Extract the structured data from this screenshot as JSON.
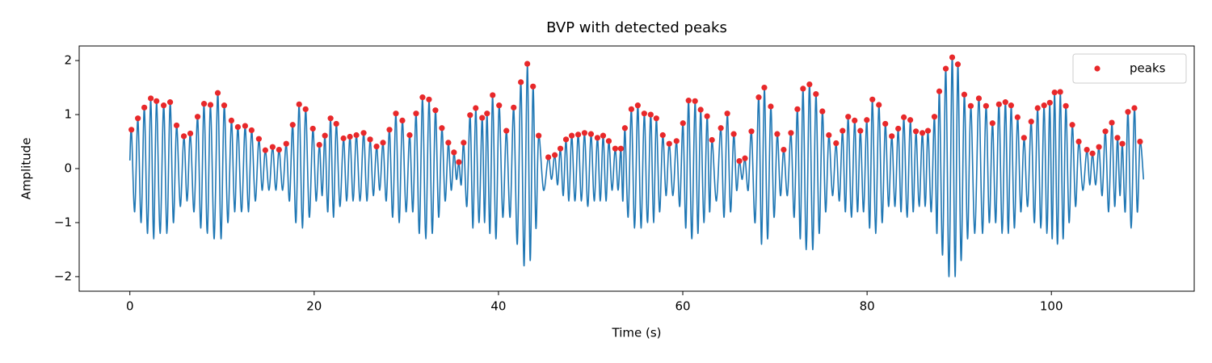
{
  "chart_data": {
    "type": "line",
    "title": "BVP with detected peaks",
    "x_label": "Time (s)",
    "y_label": "Amplitude",
    "xlim": [
      -5.5,
      115.5
    ],
    "ylim": [
      -2.27,
      2.27
    ],
    "xticks": [
      0,
      20,
      40,
      60,
      80,
      100
    ],
    "yticks": [
      {
        "value": -2,
        "label": "−2"
      },
      {
        "value": -1,
        "label": "−1"
      },
      0,
      1,
      2
    ],
    "legend": "upper right",
    "series": [
      {
        "type": "line",
        "color": "#1f77b4",
        "x": [
          0,
          0.17,
          0.52,
          0.87,
          1.22,
          1.57,
          1.92,
          2.27,
          2.58,
          2.89,
          3.28,
          3.67,
          4.02,
          4.37,
          4.72,
          5.07,
          5.47,
          5.86,
          6.21,
          6.56,
          6.96,
          7.35,
          7.7,
          8.05,
          8.4,
          8.75,
          9.15,
          9.54,
          9.89,
          10.24,
          10.63,
          11.02,
          11.37,
          11.72,
          12.12,
          12.51,
          12.86,
          13.21,
          13.61,
          14.0,
          14.35,
          14.7,
          15.1,
          15.49,
          15.84,
          16.19,
          16.58,
          16.97,
          17.32,
          17.67,
          18.02,
          18.37,
          18.72,
          19.07,
          19.47,
          19.86,
          20.21,
          20.56,
          20.87,
          21.17,
          21.48,
          21.78,
          22.09,
          22.4,
          22.79,
          23.18,
          23.53,
          23.88,
          24.23,
          24.58,
          24.98,
          25.37,
          25.72,
          26.07,
          26.42,
          26.77,
          27.12,
          27.47,
          27.82,
          28.17,
          28.52,
          28.87,
          29.22,
          29.57,
          29.97,
          30.36,
          30.71,
          31.06,
          31.41,
          31.76,
          32.11,
          32.46,
          32.81,
          33.16,
          33.51,
          33.86,
          34.21,
          34.56,
          34.87,
          35.17,
          35.44,
          35.7,
          35.96,
          36.22,
          36.57,
          36.92,
          37.23,
          37.53,
          37.88,
          38.23,
          38.5,
          38.76,
          39.07,
          39.37,
          39.72,
          40.07,
          40.47,
          40.86,
          41.26,
          41.65,
          42.04,
          42.43,
          42.78,
          43.13,
          43.44,
          43.75,
          44.06,
          44.36,
          44.89,
          45.41,
          45.76,
          46.11,
          46.42,
          46.72,
          47.03,
          47.33,
          47.64,
          47.95,
          48.3,
          48.65,
          49.0,
          49.34,
          49.69,
          50.04,
          50.39,
          50.74,
          51.05,
          51.36,
          51.67,
          51.97,
          52.32,
          52.67,
          52.98,
          53.28,
          53.5,
          53.72,
          54.07,
          54.42,
          54.77,
          55.12,
          55.47,
          55.82,
          56.17,
          56.52,
          56.83,
          57.13,
          57.48,
          57.83,
          58.18,
          58.53,
          58.93,
          59.32,
          59.67,
          60.02,
          60.33,
          60.63,
          60.98,
          61.33,
          61.64,
          61.94,
          62.29,
          62.64,
          62.91,
          63.17,
          63.65,
          64.13,
          64.48,
          64.83,
          65.18,
          65.53,
          65.84,
          66.14,
          66.45,
          66.75,
          67.1,
          67.45,
          67.85,
          68.24,
          68.55,
          68.85,
          69.2,
          69.55,
          69.9,
          70.25,
          70.6,
          70.95,
          71.35,
          71.74,
          72.09,
          72.44,
          72.75,
          73.05,
          73.4,
          73.75,
          74.1,
          74.45,
          74.8,
          75.15,
          75.5,
          75.85,
          76.25,
          76.64,
          76.99,
          77.34,
          77.65,
          77.95,
          78.3,
          78.65,
          78.96,
          79.27,
          79.62,
          79.97,
          80.28,
          80.58,
          80.93,
          81.28,
          81.63,
          81.98,
          82.33,
          82.68,
          83.03,
          83.38,
          83.69,
          83.99,
          84.34,
          84.69,
          85.0,
          85.3,
          85.65,
          86.0,
          86.31,
          86.61,
          86.96,
          87.31,
          87.58,
          87.84,
          88.19,
          88.54,
          88.89,
          89.24,
          89.55,
          89.85,
          90.2,
          90.55,
          90.9,
          91.25,
          91.69,
          92.13,
          92.52,
          92.91,
          93.26,
          93.61,
          93.96,
          94.31,
          94.66,
          95.01,
          95.32,
          95.63,
          95.98,
          96.33,
          96.68,
          97.03,
          97.42,
          97.81,
          98.16,
          98.51,
          98.86,
          99.21,
          99.52,
          99.83,
          100.09,
          100.35,
          100.66,
          100.96,
          101.27,
          101.57,
          101.92,
          102.27,
          102.62,
          102.97,
          103.41,
          103.85,
          104.16,
          104.46,
          104.81,
          105.16,
          105.51,
          105.86,
          106.21,
          106.56,
          106.87,
          107.17,
          107.44,
          107.7,
          108.01,
          108.31,
          108.66,
          109.01,
          109.32,
          109.62,
          110.0
        ],
        "values": [
          0.15,
          0.72,
          -0.8,
          0.93,
          -1.0,
          1.13,
          -1.2,
          1.3,
          -1.3,
          1.25,
          -1.2,
          1.17,
          -1.2,
          1.23,
          -1.0,
          0.8,
          -0.7,
          0.6,
          -0.6,
          0.65,
          -0.8,
          0.96,
          -1.1,
          1.2,
          -1.2,
          1.18,
          -1.3,
          1.4,
          -1.3,
          1.17,
          -1.0,
          0.89,
          -0.8,
          0.77,
          -0.8,
          0.79,
          -0.8,
          0.71,
          -0.6,
          0.55,
          -0.4,
          0.34,
          -0.4,
          0.4,
          -0.4,
          0.35,
          -0.4,
          0.46,
          -0.6,
          0.81,
          -1.0,
          1.19,
          -1.1,
          1.1,
          -0.9,
          0.74,
          -0.6,
          0.44,
          -0.5,
          0.61,
          -0.8,
          0.93,
          -0.9,
          0.83,
          -0.7,
          0.56,
          -0.6,
          0.59,
          -0.6,
          0.62,
          -0.6,
          0.66,
          -0.6,
          0.54,
          -0.5,
          0.41,
          -0.4,
          0.48,
          -0.6,
          0.72,
          -0.9,
          1.02,
          -1.0,
          0.89,
          -0.8,
          0.62,
          -0.8,
          1.02,
          -1.2,
          1.32,
          -1.3,
          1.28,
          -1.2,
          1.08,
          -0.9,
          0.75,
          -0.6,
          0.48,
          -0.4,
          0.3,
          -0.2,
          0.12,
          -0.3,
          0.48,
          -0.7,
          0.99,
          -1.1,
          1.12,
          -1.0,
          0.94,
          -1.0,
          1.02,
          -1.2,
          1.36,
          -1.3,
          1.17,
          -0.9,
          0.7,
          -0.9,
          1.13,
          -1.4,
          1.6,
          -1.8,
          1.94,
          -1.7,
          1.52,
          -1.1,
          0.61,
          -0.4,
          0.21,
          -0.2,
          0.25,
          -0.3,
          0.37,
          -0.5,
          0.54,
          -0.6,
          0.61,
          -0.6,
          0.63,
          -0.6,
          0.66,
          -0.7,
          0.64,
          -0.6,
          0.57,
          -0.6,
          0.61,
          -0.6,
          0.51,
          -0.4,
          0.37,
          -0.4,
          0.37,
          -0.6,
          0.75,
          -0.9,
          1.1,
          -1.1,
          1.17,
          -1.1,
          1.02,
          -1.0,
          1.0,
          -1.0,
          0.93,
          -0.8,
          0.62,
          -0.5,
          0.46,
          -0.5,
          0.51,
          -0.7,
          0.84,
          -1.1,
          1.26,
          -1.3,
          1.25,
          -1.2,
          1.09,
          -1.0,
          0.97,
          -0.8,
          0.53,
          -0.6,
          0.75,
          -0.9,
          1.02,
          -0.8,
          0.64,
          -0.4,
          0.14,
          -0.2,
          0.19,
          -0.4,
          0.69,
          -1.0,
          1.32,
          -1.4,
          1.5,
          -1.3,
          1.15,
          -0.9,
          0.64,
          -0.5,
          0.35,
          -0.5,
          0.66,
          -0.9,
          1.1,
          -1.3,
          1.48,
          -1.5,
          1.56,
          -1.5,
          1.38,
          -1.2,
          1.06,
          -0.8,
          0.62,
          -0.5,
          0.47,
          -0.6,
          0.7,
          -0.8,
          0.96,
          -0.9,
          0.89,
          -0.8,
          0.7,
          -0.8,
          0.9,
          -1.1,
          1.28,
          -1.2,
          1.18,
          -1.0,
          0.83,
          -0.7,
          0.6,
          -0.7,
          0.74,
          -0.8,
          0.95,
          -0.9,
          0.9,
          -0.8,
          0.69,
          -0.7,
          0.66,
          -0.7,
          0.7,
          -0.8,
          0.96,
          -1.2,
          1.43,
          -1.6,
          1.85,
          -2.0,
          2.06,
          -2.0,
          1.93,
          -1.7,
          1.37,
          -1.3,
          1.16,
          -1.2,
          1.3,
          -1.2,
          1.16,
          -1.0,
          0.84,
          -1.0,
          1.19,
          -1.2,
          1.23,
          -1.2,
          1.17,
          -1.1,
          0.95,
          -0.8,
          0.57,
          -0.7,
          0.87,
          -1.0,
          1.12,
          -1.1,
          1.17,
          -1.2,
          1.22,
          -1.3,
          1.41,
          -1.4,
          1.42,
          -1.3,
          1.16,
          -1.0,
          0.81,
          -0.7,
          0.5,
          -0.4,
          0.35,
          -0.3,
          0.28,
          -0.3,
          0.4,
          -0.5,
          0.69,
          -0.8,
          0.85,
          -0.7,
          0.57,
          -0.5,
          0.46,
          -0.8,
          1.05,
          -1.1,
          1.12,
          -0.8,
          0.5,
          -0.2
        ]
      },
      {
        "type": "scatter",
        "name": "peaks",
        "color": "#e8282a",
        "x": [
          0.17,
          0.87,
          1.57,
          2.27,
          2.89,
          3.67,
          4.37,
          5.07,
          5.86,
          6.56,
          7.35,
          8.05,
          8.75,
          9.54,
          10.24,
          11.02,
          11.72,
          12.51,
          13.21,
          14.0,
          14.7,
          15.49,
          16.19,
          16.97,
          17.67,
          18.37,
          19.07,
          19.86,
          20.56,
          21.17,
          21.78,
          22.4,
          23.18,
          23.88,
          24.58,
          25.37,
          26.07,
          26.77,
          27.47,
          28.17,
          28.87,
          29.57,
          30.36,
          31.06,
          31.76,
          32.46,
          33.16,
          33.86,
          34.56,
          35.17,
          35.7,
          36.22,
          36.92,
          37.53,
          38.23,
          38.76,
          39.37,
          40.07,
          40.86,
          41.65,
          42.43,
          43.13,
          43.75,
          44.36,
          45.41,
          46.11,
          46.72,
          47.33,
          47.95,
          48.65,
          49.34,
          50.04,
          50.74,
          51.36,
          51.97,
          52.67,
          53.28,
          53.72,
          54.42,
          55.12,
          55.82,
          56.52,
          57.13,
          57.83,
          58.53,
          59.32,
          60.02,
          60.63,
          61.33,
          61.94,
          62.64,
          63.17,
          64.13,
          64.83,
          65.53,
          66.14,
          66.75,
          67.45,
          68.24,
          68.85,
          69.55,
          70.25,
          70.95,
          71.74,
          72.44,
          73.05,
          73.75,
          74.45,
          75.15,
          75.85,
          76.64,
          77.34,
          77.95,
          78.65,
          79.27,
          79.97,
          80.58,
          81.28,
          81.98,
          82.68,
          83.38,
          83.99,
          84.69,
          85.3,
          86.0,
          86.61,
          87.31,
          87.84,
          88.54,
          89.24,
          89.85,
          90.55,
          91.25,
          92.13,
          92.91,
          93.61,
          94.31,
          95.01,
          95.63,
          96.33,
          97.03,
          97.81,
          98.51,
          99.21,
          99.83,
          100.35,
          100.96,
          101.57,
          102.27,
          102.97,
          103.85,
          104.46,
          105.16,
          105.86,
          106.56,
          107.17,
          107.7,
          108.31,
          109.01,
          109.62
        ],
        "values": [
          0.72,
          0.93,
          1.13,
          1.3,
          1.25,
          1.17,
          1.23,
          0.8,
          0.6,
          0.65,
          0.96,
          1.2,
          1.18,
          1.4,
          1.17,
          0.89,
          0.77,
          0.79,
          0.71,
          0.55,
          0.34,
          0.4,
          0.35,
          0.46,
          0.81,
          1.19,
          1.1,
          0.74,
          0.44,
          0.61,
          0.93,
          0.83,
          0.56,
          0.59,
          0.62,
          0.66,
          0.54,
          0.41,
          0.48,
          0.72,
          1.02,
          0.89,
          0.62,
          1.02,
          1.32,
          1.28,
          1.08,
          0.75,
          0.48,
          0.3,
          0.12,
          0.48,
          0.99,
          1.12,
          0.94,
          1.02,
          1.36,
          1.17,
          0.7,
          1.13,
          1.6,
          1.94,
          1.52,
          0.61,
          0.21,
          0.25,
          0.37,
          0.54,
          0.61,
          0.63,
          0.66,
          0.64,
          0.57,
          0.61,
          0.51,
          0.37,
          0.37,
          0.75,
          1.1,
          1.17,
          1.02,
          1.0,
          0.93,
          0.62,
          0.46,
          0.51,
          0.84,
          1.26,
          1.25,
          1.09,
          0.97,
          0.53,
          0.75,
          1.02,
          0.64,
          0.14,
          0.19,
          0.69,
          1.32,
          1.5,
          1.15,
          0.64,
          0.35,
          0.66,
          1.1,
          1.48,
          1.56,
          1.38,
          1.06,
          0.62,
          0.47,
          0.7,
          0.96,
          0.89,
          0.7,
          0.9,
          1.28,
          1.18,
          0.83,
          0.6,
          0.74,
          0.95,
          0.9,
          0.69,
          0.66,
          0.7,
          0.96,
          1.43,
          1.85,
          2.06,
          1.93,
          1.37,
          1.16,
          1.3,
          1.16,
          0.84,
          1.19,
          1.23,
          1.17,
          0.95,
          0.57,
          0.87,
          1.12,
          1.17,
          1.22,
          1.41,
          1.42,
          1.16,
          0.81,
          0.5,
          0.35,
          0.28,
          0.4,
          0.69,
          0.85,
          0.57,
          0.46,
          1.05,
          1.12,
          0.5
        ]
      }
    ]
  }
}
